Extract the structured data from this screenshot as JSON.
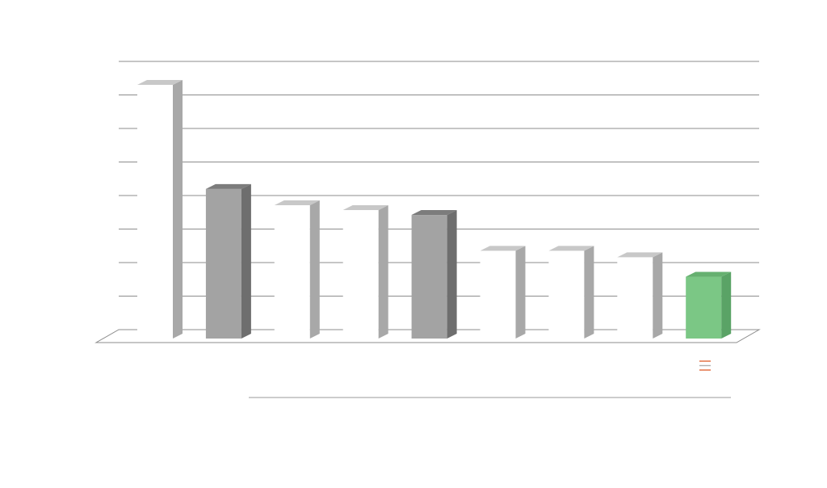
{
  "chart_data": {
    "type": "bar",
    "three_d": true,
    "categories": [
      "",
      "",
      "",
      "",
      "",
      "",
      "",
      "",
      ""
    ],
    "values": [
      7.8,
      4.6,
      4.1,
      3.95,
      3.8,
      2.7,
      2.7,
      2.5,
      1.9
    ],
    "ylim": [
      0,
      8
    ],
    "grid": true,
    "bar_colors": [
      "#ffffff",
      "#a3a3a3",
      "#ffffff",
      "#ffffff",
      "#a3a3a3",
      "#ffffff",
      "#ffffff",
      "#ffffff",
      "#7bc785"
    ],
    "side_colors": [
      "#a8a8a8",
      "#6e6e6e",
      "#a8a8a8",
      "#a8a8a8",
      "#6e6e6e",
      "#a8a8a8",
      "#a8a8a8",
      "#a8a8a8",
      "#5aa366"
    ],
    "top_colors": [
      "#c8c8c8",
      "#7c7c7c",
      "#c8c8c8",
      "#c8c8c8",
      "#7c7c7c",
      "#c8c8c8",
      "#c8c8c8",
      "#c8c8c8",
      "#66b070"
    ],
    "gridline_color": "#8c8c8c",
    "legend_position": "bottom-right",
    "legend_icon": "menu-icon",
    "legend_icon_color": "#e06a3a"
  }
}
